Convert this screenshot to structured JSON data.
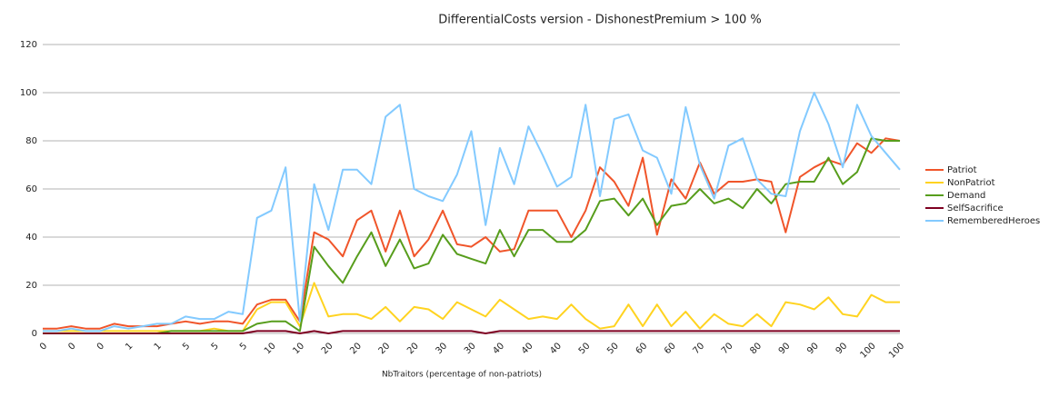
{
  "chart_data": {
    "type": "line",
    "title": "DifferentialCosts version - DishonestPremium > 100 %",
    "x_label": "NbTraitors (percentage of non-patriots)",
    "categories": [
      "0",
      null,
      "0",
      null,
      "0",
      null,
      "1",
      null,
      "1",
      null,
      "5",
      null,
      "5",
      null,
      "5",
      null,
      "10",
      null,
      "10",
      null,
      "20",
      null,
      "20",
      null,
      "20",
      null,
      "20",
      null,
      "30",
      null,
      "30",
      null,
      "40",
      null,
      "40",
      null,
      "40",
      null,
      "50",
      null,
      "50",
      null,
      "60",
      null,
      "60",
      null,
      "70",
      null,
      "70",
      null,
      "80",
      null,
      "90",
      null,
      "90",
      null,
      "90",
      null,
      "100",
      null,
      "100"
    ],
    "series": [
      {
        "name": "Patriot",
        "color": "#f0552a",
        "values": [
          2,
          2,
          3,
          2,
          2,
          4,
          3,
          3,
          3,
          4,
          5,
          4,
          5,
          5,
          4,
          12,
          14,
          14,
          5,
          42,
          39,
          32,
          47,
          51,
          34,
          51,
          32,
          39,
          51,
          37,
          36,
          40,
          34,
          35,
          51,
          51,
          51,
          40,
          51,
          69,
          63,
          53,
          73,
          41,
          64,
          56,
          71,
          58,
          63,
          63,
          64,
          63,
          42,
          65,
          69,
          72,
          70,
          79,
          75,
          81,
          80
        ]
      },
      {
        "name": "NonPatriot",
        "color": "#ffd320",
        "values": [
          1,
          1,
          1,
          1,
          1,
          1,
          1,
          1,
          1,
          1,
          1,
          1,
          2,
          1,
          1,
          10,
          13,
          13,
          3,
          21,
          7,
          8,
          8,
          6,
          11,
          5,
          11,
          10,
          6,
          13,
          10,
          7,
          14,
          10,
          6,
          7,
          6,
          12,
          6,
          2,
          3,
          12,
          3,
          12,
          3,
          9,
          2,
          8,
          4,
          3,
          8,
          3,
          13,
          12,
          10,
          15,
          8,
          7,
          16,
          13,
          13
        ]
      },
      {
        "name": "Demand",
        "color": "#579d1c",
        "values": [
          0,
          0,
          0,
          0,
          0,
          0,
          0,
          0,
          0,
          1,
          1,
          1,
          1,
          1,
          1,
          4,
          5,
          5,
          1,
          36,
          28,
          21,
          32,
          42,
          28,
          39,
          27,
          29,
          41,
          33,
          31,
          29,
          43,
          32,
          43,
          43,
          38,
          38,
          43,
          55,
          56,
          49,
          56,
          45,
          53,
          54,
          60,
          54,
          56,
          52,
          60,
          54,
          62,
          63,
          63,
          73,
          62,
          67,
          81,
          80,
          80
        ]
      },
      {
        "name": "SelfSacrifice",
        "color": "#7e0021",
        "values": [
          0,
          0,
          0,
          0,
          0,
          0,
          0,
          0,
          0,
          0,
          0,
          0,
          0,
          0,
          0,
          1,
          1,
          1,
          0,
          1,
          0,
          1,
          1,
          1,
          1,
          1,
          1,
          1,
          1,
          1,
          1,
          0,
          1,
          1,
          1,
          1,
          1,
          1,
          1,
          1,
          1,
          1,
          1,
          1,
          1,
          1,
          1,
          1,
          1,
          1,
          1,
          1,
          1,
          1,
          1,
          1,
          1,
          1,
          1,
          1,
          1
        ]
      },
      {
        "name": "RememberedHeroes",
        "color": "#83caff",
        "values": [
          1,
          1,
          2,
          1,
          1,
          3,
          2,
          3,
          4,
          4,
          7,
          6,
          6,
          9,
          8,
          48,
          51,
          69,
          5,
          62,
          43,
          68,
          68,
          62,
          90,
          95,
          60,
          57,
          55,
          66,
          84,
          45,
          77,
          62,
          86,
          74,
          61,
          65,
          95,
          57,
          89,
          91,
          76,
          73,
          58,
          94,
          70,
          56,
          78,
          81,
          64,
          58,
          57,
          84,
          100,
          87,
          69,
          95,
          82,
          75,
          68
        ]
      }
    ],
    "ylim": [
      0,
      120
    ],
    "yticks": [
      0,
      20,
      40,
      60,
      80,
      100,
      120
    ],
    "grid": true,
    "legend": "right"
  }
}
